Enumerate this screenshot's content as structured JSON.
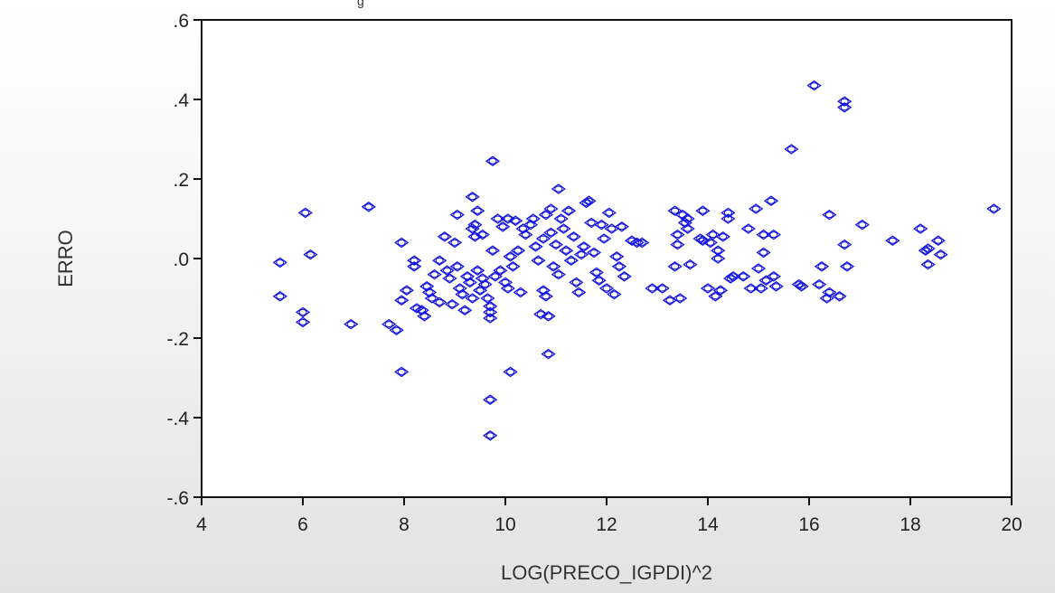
{
  "window": {
    "title_fragment": "g"
  },
  "chart_data": {
    "type": "scatter",
    "title": "",
    "xlabel": "LOG(PRECO_IGPDI)^2",
    "ylabel": "ERRO",
    "xlim": [
      4,
      20
    ],
    "ylim": [
      -0.6,
      0.6
    ],
    "x_ticks": [
      4,
      6,
      8,
      10,
      12,
      14,
      16,
      18,
      20
    ],
    "x_tick_labels": [
      "4",
      "6",
      "8",
      "10",
      "12",
      "14",
      "16",
      "18",
      "20"
    ],
    "y_ticks": [
      -0.6,
      -0.4,
      -0.2,
      0.0,
      0.2,
      0.4,
      0.6
    ],
    "y_tick_labels": [
      "-.6",
      "-.4",
      "-.2",
      ".0",
      ".2",
      ".4",
      ".6"
    ],
    "grid": false,
    "marker": "diamond-circle",
    "marker_color": "#1414e6",
    "series": [
      {
        "points": [
          [
            5.55,
            -0.01
          ],
          [
            5.55,
            -0.095
          ],
          [
            6.05,
            0.115
          ],
          [
            6.15,
            0.01
          ],
          [
            6.0,
            -0.135
          ],
          [
            6.0,
            -0.16
          ],
          [
            6.95,
            -0.165
          ],
          [
            7.3,
            0.13
          ],
          [
            7.7,
            -0.165
          ],
          [
            7.85,
            -0.18
          ],
          [
            7.95,
            0.04
          ],
          [
            7.95,
            -0.285
          ],
          [
            7.95,
            -0.105
          ],
          [
            8.05,
            -0.08
          ],
          [
            8.2,
            -0.005
          ],
          [
            8.2,
            -0.02
          ],
          [
            8.25,
            -0.125
          ],
          [
            8.35,
            -0.13
          ],
          [
            8.4,
            -0.145
          ],
          [
            8.45,
            -0.07
          ],
          [
            8.5,
            -0.085
          ],
          [
            8.55,
            -0.1
          ],
          [
            8.6,
            -0.04
          ],
          [
            8.7,
            -0.11
          ],
          [
            8.7,
            -0.005
          ],
          [
            8.8,
            0.055
          ],
          [
            8.85,
            -0.03
          ],
          [
            8.9,
            -0.05
          ],
          [
            8.95,
            -0.115
          ],
          [
            9.0,
            0.04
          ],
          [
            9.05,
            0.11
          ],
          [
            9.05,
            -0.02
          ],
          [
            9.1,
            -0.075
          ],
          [
            9.15,
            -0.09
          ],
          [
            9.2,
            -0.13
          ],
          [
            9.25,
            -0.045
          ],
          [
            9.3,
            -0.06
          ],
          [
            9.35,
            0.155
          ],
          [
            9.35,
            0.075
          ],
          [
            9.35,
            -0.1
          ],
          [
            9.4,
            0.055
          ],
          [
            9.4,
            0.085
          ],
          [
            9.45,
            0.12
          ],
          [
            9.45,
            -0.03
          ],
          [
            9.5,
            -0.08
          ],
          [
            9.55,
            0.06
          ],
          [
            9.55,
            -0.05
          ],
          [
            9.6,
            -0.065
          ],
          [
            9.65,
            -0.1
          ],
          [
            9.7,
            -0.12
          ],
          [
            9.7,
            -0.135
          ],
          [
            9.7,
            -0.15
          ],
          [
            9.7,
            -0.355
          ],
          [
            9.7,
            -0.445
          ],
          [
            9.75,
            0.245
          ],
          [
            9.75,
            0.02
          ],
          [
            9.8,
            -0.045
          ],
          [
            9.85,
            0.1
          ],
          [
            9.9,
            -0.03
          ],
          [
            9.95,
            0.08
          ],
          [
            10.0,
            -0.06
          ],
          [
            10.05,
            0.1
          ],
          [
            10.05,
            -0.075
          ],
          [
            10.1,
            -0.285
          ],
          [
            10.1,
            0.005
          ],
          [
            10.15,
            -0.02
          ],
          [
            10.2,
            0.095
          ],
          [
            10.25,
            0.02
          ],
          [
            10.3,
            -0.085
          ],
          [
            10.35,
            0.075
          ],
          [
            10.4,
            0.06
          ],
          [
            10.5,
            0.085
          ],
          [
            10.55,
            0.1
          ],
          [
            10.6,
            0.03
          ],
          [
            10.65,
            -0.005
          ],
          [
            10.7,
            -0.14
          ],
          [
            10.75,
            0.05
          ],
          [
            10.75,
            -0.08
          ],
          [
            10.8,
            0.11
          ],
          [
            10.8,
            -0.095
          ],
          [
            10.85,
            -0.24
          ],
          [
            10.85,
            -0.145
          ],
          [
            10.9,
            0.125
          ],
          [
            10.9,
            0.065
          ],
          [
            10.95,
            -0.02
          ],
          [
            11.0,
            0.035
          ],
          [
            11.05,
            0.175
          ],
          [
            11.05,
            -0.04
          ],
          [
            11.1,
            0.1
          ],
          [
            11.15,
            0.075
          ],
          [
            11.2,
            0.02
          ],
          [
            11.25,
            0.12
          ],
          [
            11.3,
            -0.005
          ],
          [
            11.35,
            0.055
          ],
          [
            11.4,
            -0.06
          ],
          [
            11.45,
            -0.085
          ],
          [
            11.5,
            0.01
          ],
          [
            11.55,
            0.03
          ],
          [
            11.6,
            0.14
          ],
          [
            11.65,
            0.145
          ],
          [
            11.7,
            0.09
          ],
          [
            11.75,
            0.015
          ],
          [
            11.8,
            -0.035
          ],
          [
            11.85,
            -0.055
          ],
          [
            11.9,
            0.085
          ],
          [
            11.95,
            0.05
          ],
          [
            12.0,
            -0.075
          ],
          [
            12.05,
            0.115
          ],
          [
            12.1,
            0.075
          ],
          [
            12.15,
            -0.09
          ],
          [
            12.2,
            0.005
          ],
          [
            12.25,
            -0.02
          ],
          [
            12.3,
            0.08
          ],
          [
            12.35,
            -0.045
          ],
          [
            12.5,
            0.045
          ],
          [
            12.6,
            0.04
          ],
          [
            12.7,
            0.04
          ],
          [
            12.9,
            -0.075
          ],
          [
            13.1,
            -0.075
          ],
          [
            13.25,
            -0.105
          ],
          [
            13.35,
            0.12
          ],
          [
            13.35,
            -0.02
          ],
          [
            13.4,
            0.06
          ],
          [
            13.4,
            0.035
          ],
          [
            13.45,
            -0.1
          ],
          [
            13.5,
            0.11
          ],
          [
            13.55,
            0.09
          ],
          [
            13.6,
            0.075
          ],
          [
            13.6,
            0.1
          ],
          [
            13.65,
            -0.015
          ],
          [
            13.85,
            0.05
          ],
          [
            13.9,
            0.12
          ],
          [
            13.9,
            0.045
          ],
          [
            14.0,
            -0.075
          ],
          [
            14.05,
            0.04
          ],
          [
            14.1,
            0.06
          ],
          [
            14.15,
            -0.095
          ],
          [
            14.2,
            0.0
          ],
          [
            14.2,
            0.02
          ],
          [
            14.25,
            -0.08
          ],
          [
            14.3,
            0.055
          ],
          [
            14.4,
            0.115
          ],
          [
            14.4,
            0.1
          ],
          [
            14.45,
            -0.05
          ],
          [
            14.5,
            -0.045
          ],
          [
            14.7,
            -0.045
          ],
          [
            14.8,
            0.075
          ],
          [
            14.85,
            -0.075
          ],
          [
            14.95,
            0.125
          ],
          [
            15.0,
            -0.025
          ],
          [
            15.05,
            -0.075
          ],
          [
            15.1,
            0.015
          ],
          [
            15.1,
            0.06
          ],
          [
            15.15,
            -0.055
          ],
          [
            15.25,
            0.145
          ],
          [
            15.3,
            0.06
          ],
          [
            15.3,
            -0.045
          ],
          [
            15.35,
            -0.07
          ],
          [
            15.65,
            0.275
          ],
          [
            15.8,
            -0.065
          ],
          [
            15.85,
            -0.07
          ],
          [
            16.1,
            0.435
          ],
          [
            16.2,
            -0.065
          ],
          [
            16.25,
            -0.02
          ],
          [
            16.35,
            -0.1
          ],
          [
            16.4,
            0.11
          ],
          [
            16.4,
            -0.085
          ],
          [
            16.6,
            -0.095
          ],
          [
            16.7,
            0.395
          ],
          [
            16.7,
            0.38
          ],
          [
            16.7,
            0.035
          ],
          [
            16.75,
            -0.02
          ],
          [
            17.05,
            0.085
          ],
          [
            17.65,
            0.045
          ],
          [
            18.2,
            0.075
          ],
          [
            18.3,
            0.02
          ],
          [
            18.35,
            -0.015
          ],
          [
            18.35,
            0.025
          ],
          [
            18.55,
            0.045
          ],
          [
            18.6,
            0.01
          ],
          [
            19.65,
            0.125
          ]
        ]
      }
    ]
  }
}
